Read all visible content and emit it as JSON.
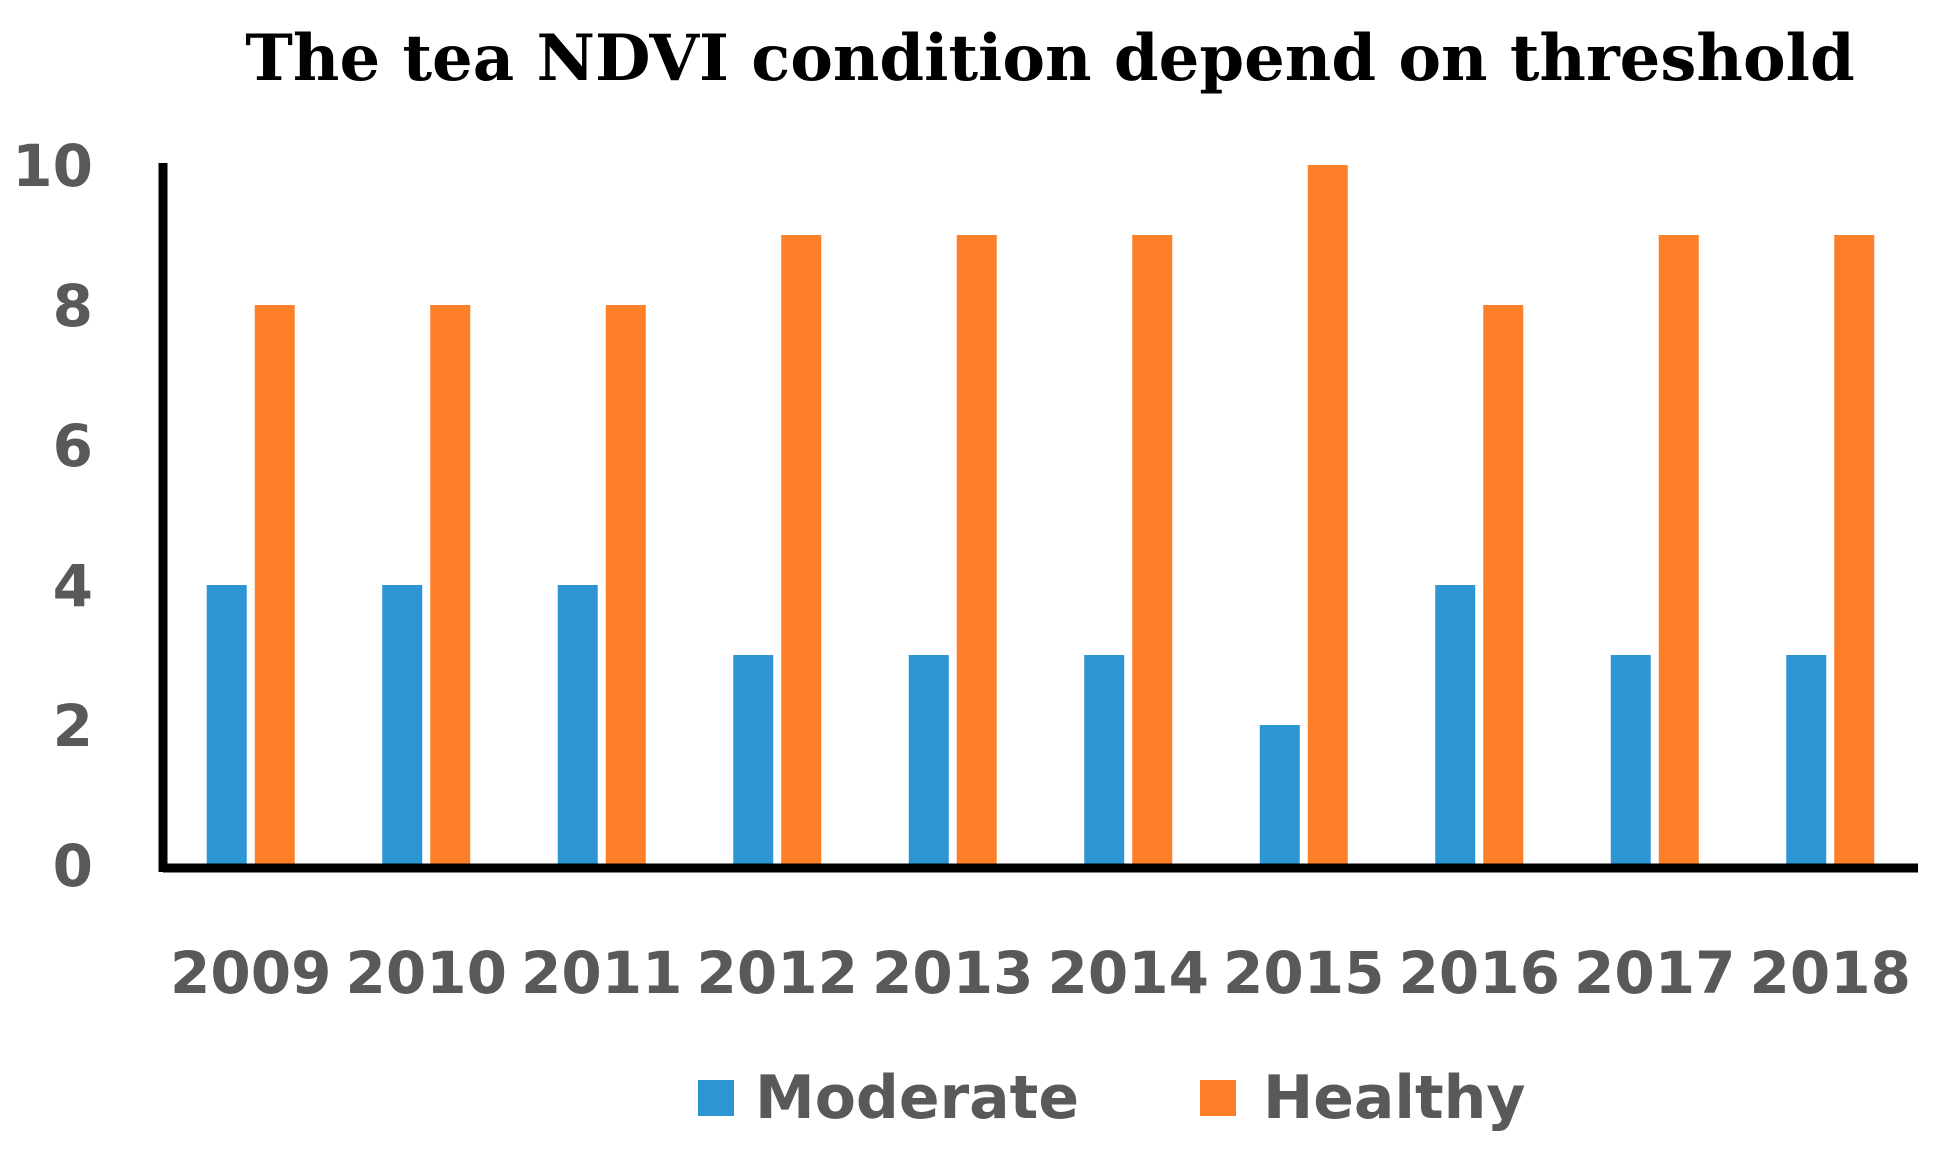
{
  "chart_data": {
    "type": "bar",
    "title": "The tea NDVI condition depend on threshold",
    "xlabel": "",
    "ylabel": "",
    "categories": [
      "2009",
      "2010",
      "2011",
      "2012",
      "2013",
      "2014",
      "2015",
      "2016",
      "2017",
      "2018"
    ],
    "series": [
      {
        "name": "Moderate",
        "color": "#2e95d3",
        "values": [
          4,
          4,
          4,
          3,
          3,
          3,
          2,
          4,
          3,
          3
        ]
      },
      {
        "name": "Healthy",
        "color": "#fd7f27",
        "values": [
          8,
          8,
          8,
          9,
          9,
          9,
          10,
          8,
          9,
          9
        ]
      }
    ],
    "ylim": [
      0,
      10
    ],
    "yticks": [
      "0",
      "2",
      "4",
      "6",
      "8",
      "10"
    ],
    "grid": false,
    "legend_position": "bottom-center"
  }
}
